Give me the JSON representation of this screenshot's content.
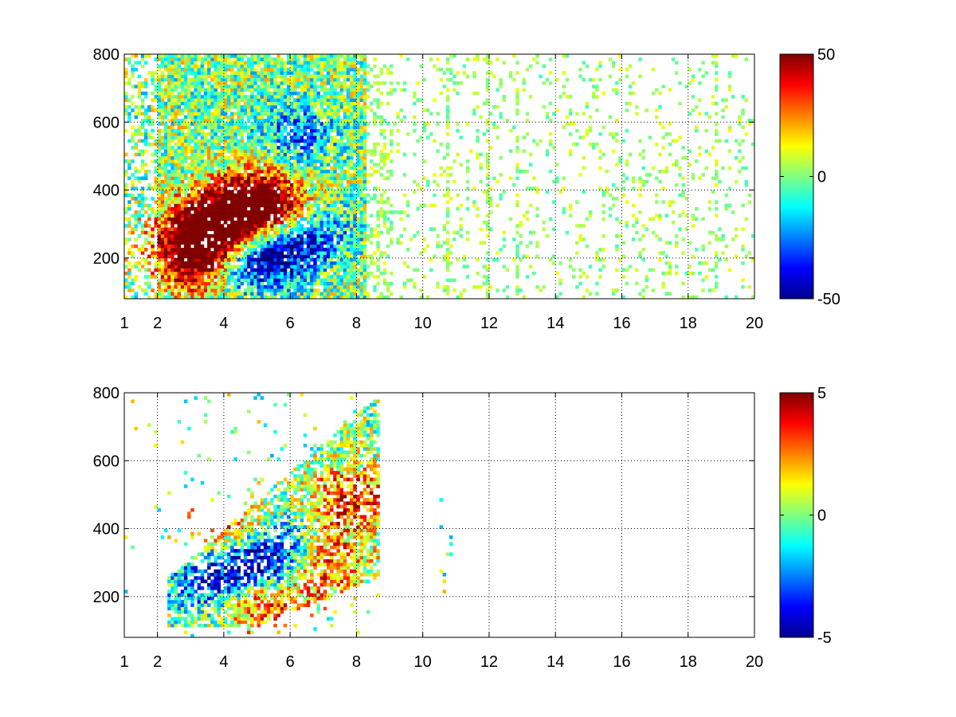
{
  "chart_data": [
    {
      "type": "heatmap",
      "title": "",
      "xlabel": "",
      "ylabel": "",
      "xlim": [
        1,
        20
      ],
      "ylim": [
        80,
        800
      ],
      "x_ticks": [
        "1",
        "2",
        "4",
        "6",
        "8",
        "10",
        "12",
        "14",
        "16",
        "18",
        "20"
      ],
      "y_ticks": [
        "200",
        "400",
        "600",
        "800"
      ],
      "grid": true,
      "colormap": "jet",
      "clim": [
        -50,
        50
      ],
      "colorbar_ticks": [
        "50",
        "0",
        "-50"
      ],
      "description_data": {
        "x_bin_width": 0.1,
        "y_bin_height": 10,
        "dense_region_x": [
          2,
          8
        ],
        "sparse_region_x": [
          8,
          20
        ],
        "hotspots": [
          {
            "x": 3.2,
            "y": 260,
            "value": 40
          },
          {
            "x": 3.0,
            "y": 180,
            "value": 38
          },
          {
            "x": 4.8,
            "y": 360,
            "value": 45
          },
          {
            "x": 5.5,
            "y": 320,
            "value": 42
          },
          {
            "x": 3.8,
            "y": 300,
            "value": 35
          }
        ],
        "coldspots": [
          {
            "x": 5.5,
            "y": 230,
            "value": -40
          },
          {
            "x": 6.5,
            "y": 270,
            "value": -35
          },
          {
            "x": 4.8,
            "y": 170,
            "value": -35
          },
          {
            "x": 6.2,
            "y": 560,
            "value": -25
          }
        ]
      }
    },
    {
      "type": "heatmap",
      "title": "",
      "xlabel": "",
      "ylabel": "",
      "xlim": [
        1,
        20
      ],
      "ylim": [
        80,
        800
      ],
      "x_ticks": [
        "1",
        "2",
        "4",
        "6",
        "8",
        "10",
        "12",
        "14",
        "16",
        "18",
        "20"
      ],
      "y_ticks": [
        "200",
        "400",
        "600",
        "800"
      ],
      "grid": true,
      "colormap": "jet",
      "clim": [
        -5,
        5
      ],
      "colorbar_ticks": [
        "5",
        "0",
        "-5"
      ],
      "description_data": {
        "x_bin_width": 0.1,
        "y_bin_height": 10,
        "dense_region_x": [
          2.3,
          8.5
        ],
        "hotspots": [
          {
            "x": 4.2,
            "y": 380,
            "value": 4.5
          },
          {
            "x": 5.3,
            "y": 180,
            "value": 4
          },
          {
            "x": 6.8,
            "y": 300,
            "value": 4
          },
          {
            "x": 7.8,
            "y": 480,
            "value": 3.5
          }
        ],
        "coldspots": [
          {
            "x": 4.5,
            "y": 320,
            "value": -4.5
          },
          {
            "x": 5.5,
            "y": 270,
            "value": -4
          },
          {
            "x": 3.5,
            "y": 240,
            "value": -3.5
          },
          {
            "x": 6.0,
            "y": 360,
            "value": -3
          }
        ]
      }
    }
  ]
}
